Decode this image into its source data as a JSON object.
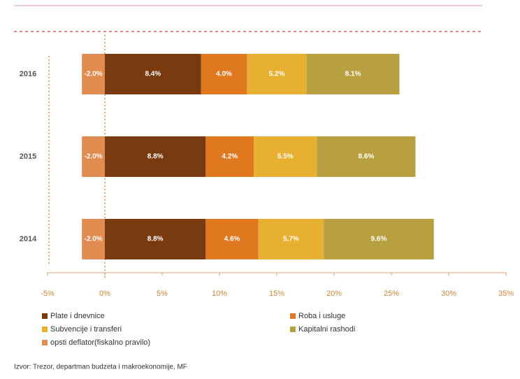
{
  "chart_data": {
    "type": "bar",
    "orientation": "horizontal",
    "stacked": true,
    "categories": [
      "2016",
      "2015",
      "2014"
    ],
    "series": [
      {
        "name": "Plate i dnevnice",
        "color": "#7a3a10",
        "values": [
          8.4,
          8.8,
          8.8
        ],
        "value_labels": [
          "8.4%",
          "8.8%",
          "8.8%"
        ]
      },
      {
        "name": "Roba i usluge",
        "color": "#e07820",
        "values": [
          4.0,
          4.2,
          4.6
        ],
        "value_labels": [
          "4.0%",
          "4.2%",
          "4.6%"
        ]
      },
      {
        "name": "Subvencije i transferi",
        "color": "#e8b030",
        "values": [
          5.2,
          5.5,
          5.7
        ],
        "value_labels": [
          "5.2%",
          "5.5%",
          "5.7%"
        ]
      },
      {
        "name": "Kapitalni rashodi",
        "color": "#b8a040",
        "values": [
          8.1,
          8.6,
          9.6
        ],
        "value_labels": [
          "8.1%",
          "8.6%",
          "9.6%"
        ]
      },
      {
        "name": "opsti deflator(fiskalno pravilo)",
        "color": "#e08c50",
        "values": [
          -2.0,
          -2.0,
          -2.0
        ],
        "value_labels": [
          "-2.0%",
          "-2.0%",
          "-2.0%"
        ]
      }
    ],
    "xlim": [
      -5,
      35
    ],
    "xticks": [
      {
        "value": -5,
        "label": "-5%"
      },
      {
        "value": 0,
        "label": "0%"
      },
      {
        "value": 5,
        "label": "5%"
      },
      {
        "value": 10,
        "label": "10%"
      },
      {
        "value": 15,
        "label": "15%"
      },
      {
        "value": 20,
        "label": "20%"
      },
      {
        "value": 25,
        "label": "25%"
      },
      {
        "value": 30,
        "label": "30%"
      },
      {
        "value": 35,
        "label": "35%"
      }
    ],
    "source": "Izvor: Trezor, departman budzeta i makroekonomije, MF"
  }
}
